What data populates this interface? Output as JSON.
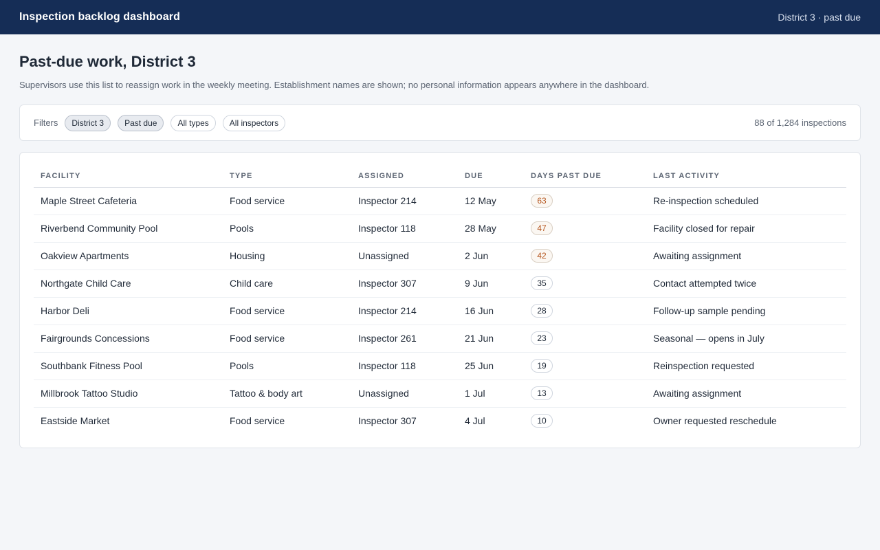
{
  "header": {
    "title": "Inspection backlog dashboard",
    "context": "District 3 · past due"
  },
  "page": {
    "title": "Past-due work, District 3",
    "subtitle": "Supervisors use this list to reassign work in the weekly meeting. Establishment names are shown; no personal information appears anywhere in the dashboard."
  },
  "filters": {
    "label": "Filters",
    "chips": [
      {
        "label": "District 3",
        "active": true
      },
      {
        "label": "Past due",
        "active": true
      },
      {
        "label": "All types",
        "active": false
      },
      {
        "label": "All inspectors",
        "active": false
      }
    ],
    "count": "88 of 1,284 inspections"
  },
  "table": {
    "columns": [
      "FACILITY",
      "TYPE",
      "ASSIGNED",
      "DUE",
      "DAYS PAST DUE",
      "LAST ACTIVITY"
    ],
    "rows": [
      {
        "facility": "Maple Street Cafeteria",
        "type": "Food service",
        "assigned": "Inspector 214",
        "due": "12 May",
        "days": "63",
        "days_highlight": true,
        "activity": "Re-inspection scheduled"
      },
      {
        "facility": "Riverbend Community Pool",
        "type": "Pools",
        "assigned": "Inspector 118",
        "due": "28 May",
        "days": "47",
        "days_highlight": true,
        "activity": "Facility closed for repair"
      },
      {
        "facility": "Oakview Apartments",
        "type": "Housing",
        "assigned": "Unassigned",
        "due": "2 Jun",
        "days": "42",
        "days_highlight": true,
        "activity": "Awaiting assignment"
      },
      {
        "facility": "Northgate Child Care",
        "type": "Child care",
        "assigned": "Inspector 307",
        "due": "9 Jun",
        "days": "35",
        "days_highlight": false,
        "activity": "Contact attempted twice"
      },
      {
        "facility": "Harbor Deli",
        "type": "Food service",
        "assigned": "Inspector 214",
        "due": "16 Jun",
        "days": "28",
        "days_highlight": false,
        "activity": "Follow-up sample pending"
      },
      {
        "facility": "Fairgrounds Concessions",
        "type": "Food service",
        "assigned": "Inspector 261",
        "due": "21 Jun",
        "days": "23",
        "days_highlight": false,
        "activity": "Seasonal — opens in July"
      },
      {
        "facility": "Southbank Fitness Pool",
        "type": "Pools",
        "assigned": "Inspector 118",
        "due": "25 Jun",
        "days": "19",
        "days_highlight": false,
        "activity": "Reinspection requested"
      },
      {
        "facility": "Millbrook Tattoo Studio",
        "type": "Tattoo & body art",
        "assigned": "Unassigned",
        "due": "1 Jul",
        "days": "13",
        "days_highlight": false,
        "activity": "Awaiting assignment"
      },
      {
        "facility": "Eastside Market",
        "type": "Food service",
        "assigned": "Inspector 307",
        "due": "4 Jul",
        "days": "10",
        "days_highlight": false,
        "activity": "Owner requested reschedule"
      }
    ]
  },
  "colors": {
    "header_bg": "#152d56",
    "page_bg": "#f4f6f9",
    "badge_highlight_text": "#b5561f"
  }
}
